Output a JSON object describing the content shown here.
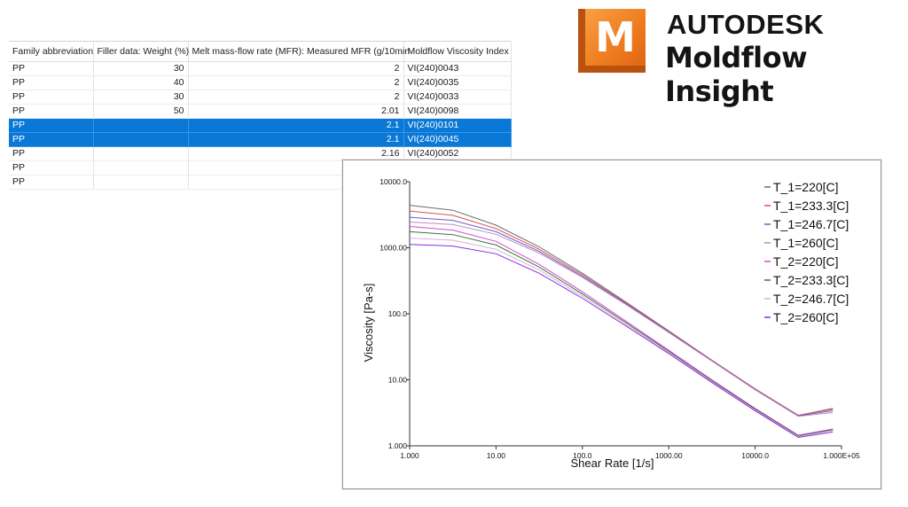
{
  "table": {
    "columns": [
      "Family abbreviation",
      "Filler data: Weight (%)",
      "Melt mass-flow rate (MFR): Measured MFR (g/10min",
      "Moldflow Viscosity Index"
    ],
    "rows": [
      {
        "family": "PP",
        "filler": "30",
        "mfr": "2",
        "vi": "VI(240)0043",
        "selected": false
      },
      {
        "family": "PP",
        "filler": "40",
        "mfr": "2",
        "vi": "VI(240)0035",
        "selected": false
      },
      {
        "family": "PP",
        "filler": "30",
        "mfr": "2",
        "vi": "VI(240)0033",
        "selected": false
      },
      {
        "family": "PP",
        "filler": "50",
        "mfr": "2.01",
        "vi": "VI(240)0098",
        "selected": false
      },
      {
        "family": "PP",
        "filler": "",
        "mfr": "2.1",
        "vi": "VI(240)0101",
        "selected": true
      },
      {
        "family": "PP",
        "filler": "",
        "mfr": "2.1",
        "vi": "VI(240)0045",
        "selected": true
      },
      {
        "family": "PP",
        "filler": "",
        "mfr": "2.16",
        "vi": "VI(240)0052",
        "selected": false
      },
      {
        "family": "PP",
        "filler": "",
        "mfr": "",
        "vi": "",
        "selected": false
      },
      {
        "family": "PP",
        "filler": "",
        "mfr": "",
        "vi": "",
        "selected": false
      }
    ],
    "selection_color": "#0a78d7"
  },
  "logo": {
    "mark_letter": "M",
    "brand": "AUTODESK",
    "product": "Moldflow Insight",
    "accent": "#ef7b1f"
  },
  "chart_data": {
    "type": "line",
    "xscale": "log",
    "yscale": "log",
    "xlim": [
      1,
      100000
    ],
    "ylim": [
      1,
      10000
    ],
    "xlabel": "Shear Rate [1/s]",
    "ylabel": "Viscosity [Pa-s]",
    "x_tick_labels": [
      "1.000",
      "10.00",
      "100.0",
      "1000.00",
      "10000.0",
      "1.000E+05"
    ],
    "y_tick_labels": [
      "1.000",
      "10.00",
      "100.0",
      "1000.00",
      "10000.0"
    ],
    "x_tick_values": [
      1,
      10,
      100,
      1000,
      10000,
      100000
    ],
    "y_tick_values": [
      1,
      10,
      100,
      1000,
      10000
    ],
    "legend_position": "top-right",
    "x": [
      1,
      3.16,
      10,
      31.6,
      100,
      316,
      1000,
      3162,
      10000,
      31623,
      79433
    ],
    "series": [
      {
        "name": "T_1=220[C]",
        "color": "#6a6a6a",
        "values": [
          4400,
          3700,
          2200,
          1030,
          410,
          152,
          55,
          19.8,
          7.3,
          2.9,
          3.7
        ]
      },
      {
        "name": "T_1=233.3[C]",
        "color": "#d9534f",
        "values": [
          3600,
          3100,
          1950,
          950,
          390,
          147,
          54,
          19.6,
          7.2,
          2.9,
          3.6
        ]
      },
      {
        "name": "T_1=246.7[C]",
        "color": "#6a5acd",
        "values": [
          2900,
          2600,
          1750,
          880,
          370,
          143,
          53,
          19.4,
          7.1,
          2.85,
          3.4
        ]
      },
      {
        "name": "T_1=260[C]",
        "color": "#c08ac0",
        "values": [
          2450,
          2250,
          1600,
          830,
          355,
          139,
          52,
          19.2,
          7.05,
          2.8,
          3.2
        ]
      },
      {
        "name": "T_2=220[C]",
        "color": "#e040e0",
        "values": [
          2100,
          1850,
          1250,
          560,
          215,
          78,
          28,
          10.0,
          3.7,
          1.45,
          1.8
        ]
      },
      {
        "name": "T_2=233.3[C]",
        "color": "#2e7d32",
        "values": [
          1750,
          1580,
          1100,
          510,
          200,
          74,
          27,
          9.7,
          3.6,
          1.42,
          1.75
        ]
      },
      {
        "name": "T_2=246.7[C]",
        "color": "#d8b0d8",
        "values": [
          1400,
          1300,
          950,
          460,
          186,
          70,
          26,
          9.4,
          3.5,
          1.38,
          1.7
        ]
      },
      {
        "name": "T_2=260[C]",
        "color": "#8a2be2",
        "values": [
          1120,
          1060,
          810,
          410,
          172,
          66,
          25,
          9.1,
          3.4,
          1.34,
          1.62
        ]
      }
    ]
  }
}
